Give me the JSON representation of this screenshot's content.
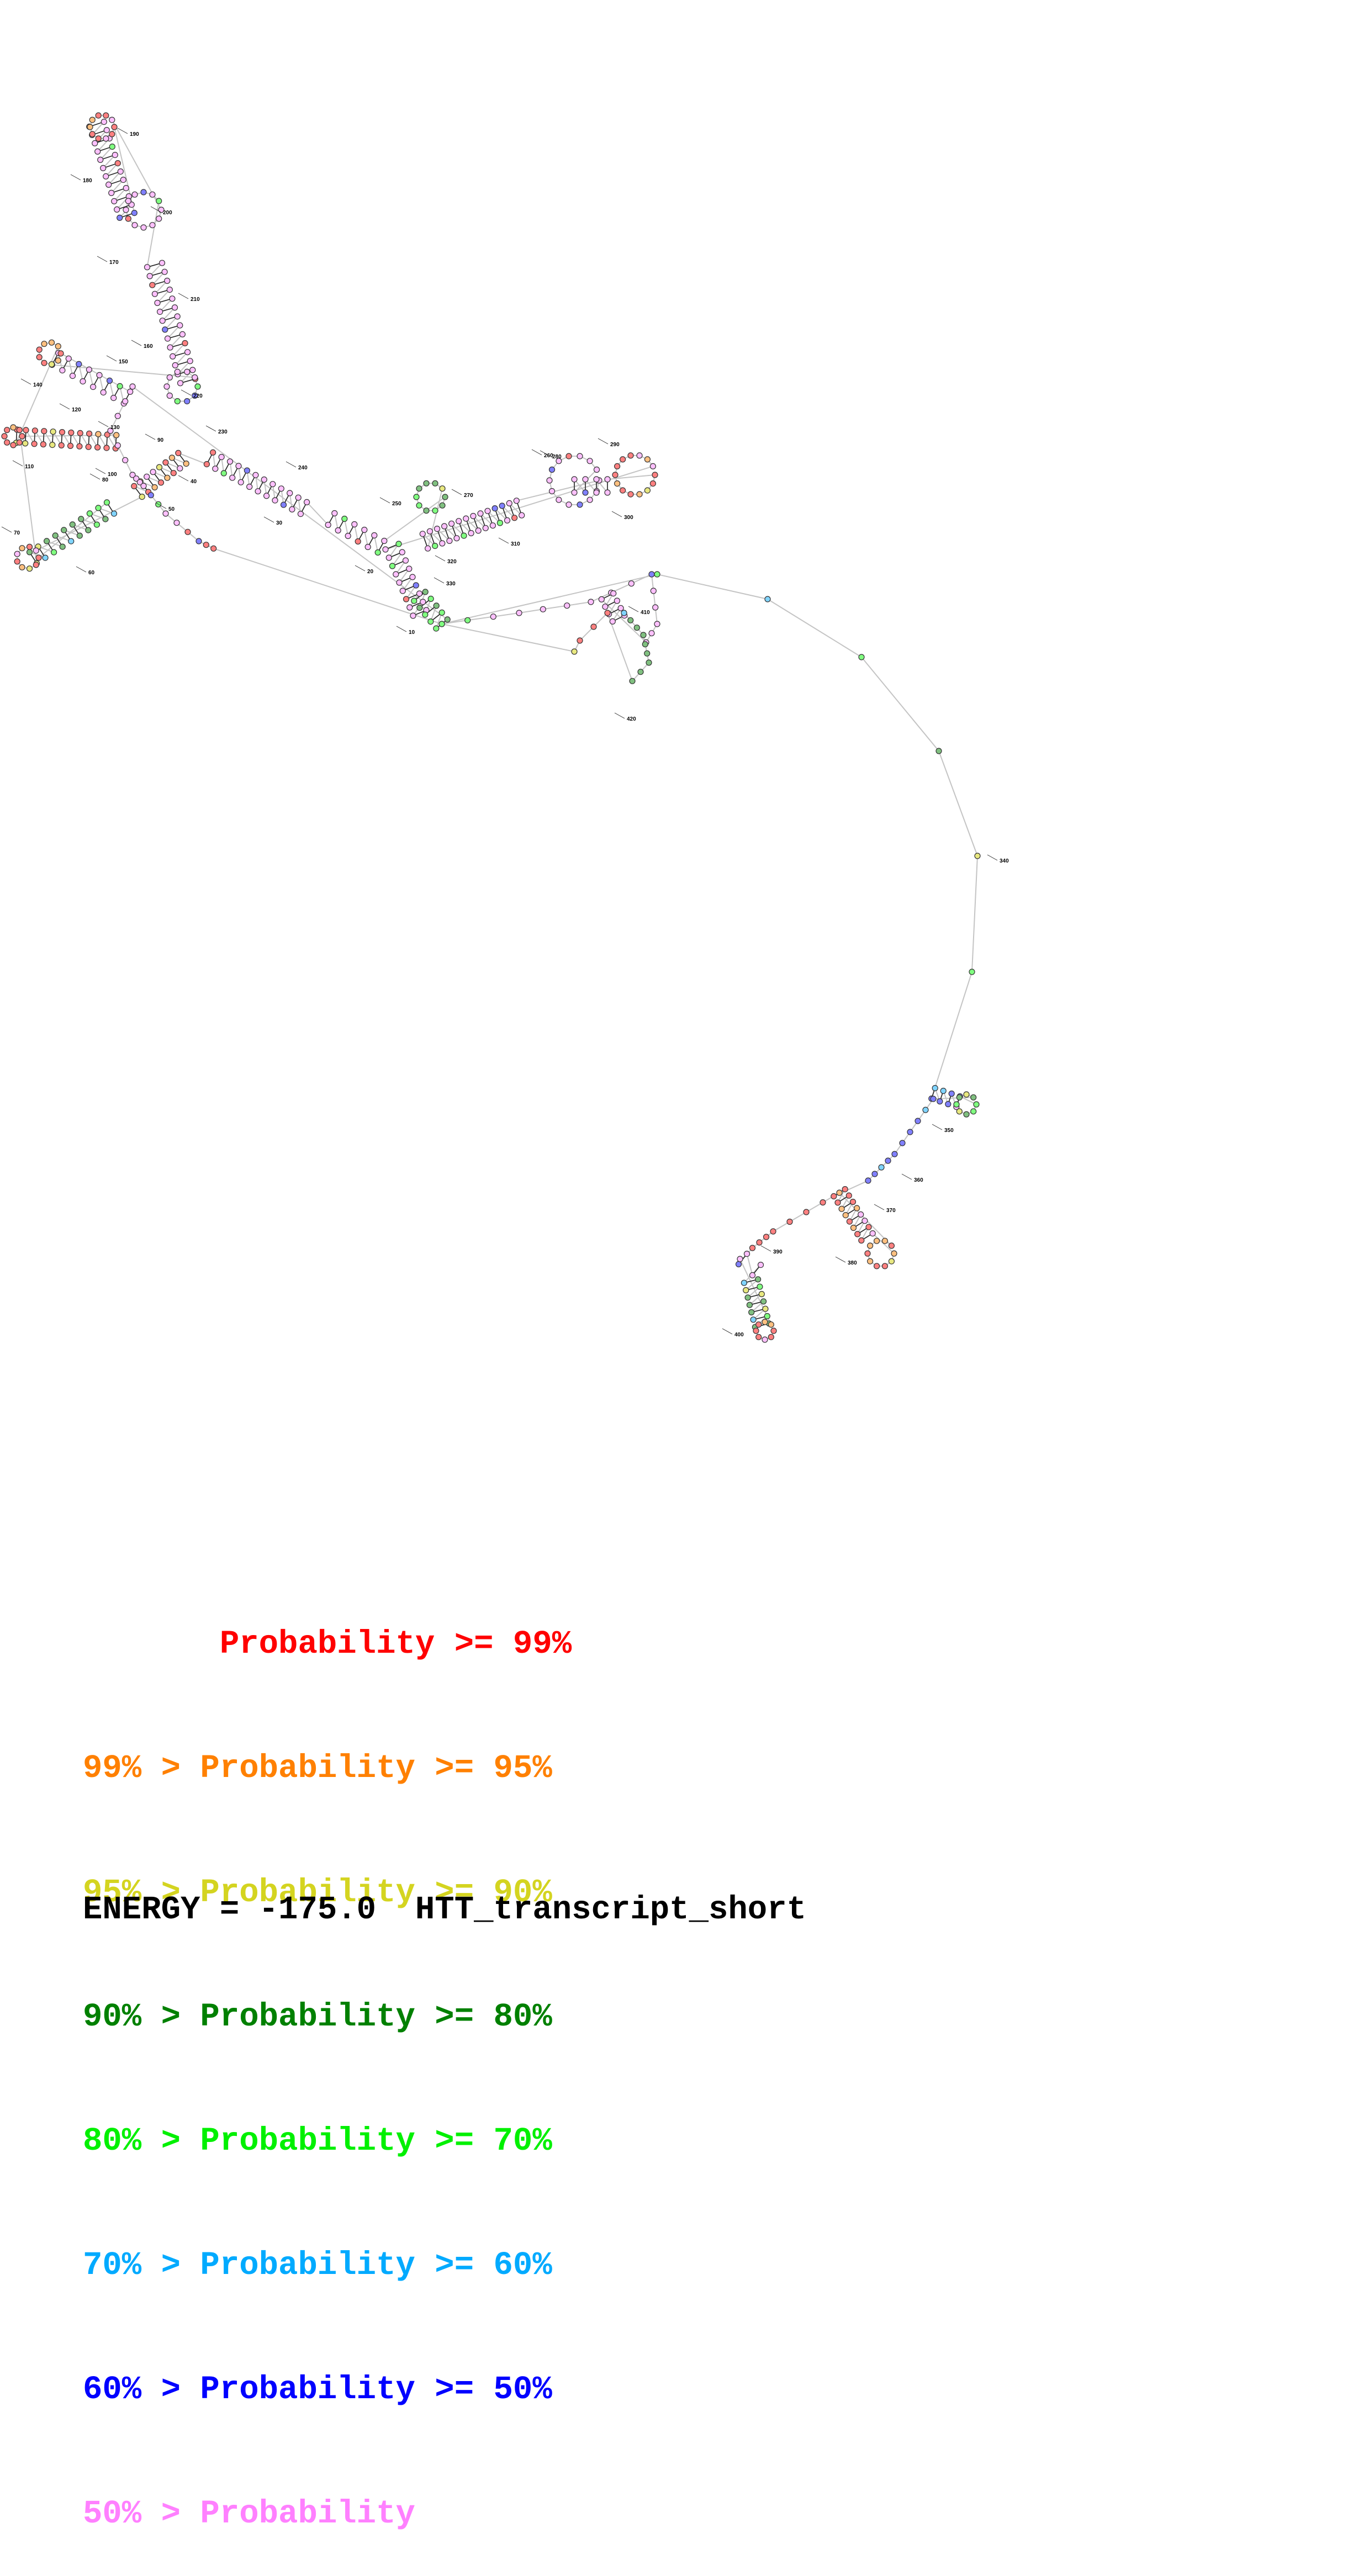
{
  "legend": [
    {
      "text": "       Probability >= 99%",
      "color": "#ff0000"
    },
    {
      "text": "99% > Probability >= 95%",
      "color": "#ff8000"
    },
    {
      "text": "95% > Probability >= 90%",
      "color": "#d4d420"
    },
    {
      "text": "90% > Probability >= 80%",
      "color": "#008000"
    },
    {
      "text": "80% > Probability >= 70%",
      "color": "#00f000"
    },
    {
      "text": "70% > Probability >= 60%",
      "color": "#00aaff"
    },
    {
      "text": "60% > Probability >= 50%",
      "color": "#0000ff"
    },
    {
      "text": "50% > Probability",
      "color": "#ff80ff"
    }
  ],
  "energy_label": "ENERGY = -175.0  HTT_transcript_short",
  "index_labels": [
    "10",
    "20",
    "30",
    "40",
    "50",
    "60",
    "70",
    "80",
    "90",
    "100",
    "110",
    "120",
    "130",
    "140",
    "150",
    "160",
    "170",
    "180",
    "190",
    "200",
    "210",
    "220",
    "230",
    "240",
    "250",
    "260",
    "270",
    "280",
    "290",
    "300",
    "310",
    "320",
    "330",
    "340",
    "350",
    "360",
    "370",
    "380",
    "390",
    "400",
    "410",
    "420"
  ],
  "fill_colors": {
    "p99": "#ff8080",
    "p95": "#ffc080",
    "p90": "#e8e880",
    "p80": "#80c080",
    "p70": "#80ff80",
    "p60": "#80d4ff",
    "p50": "#8080ff",
    "low": "#ffc0ff"
  }
}
